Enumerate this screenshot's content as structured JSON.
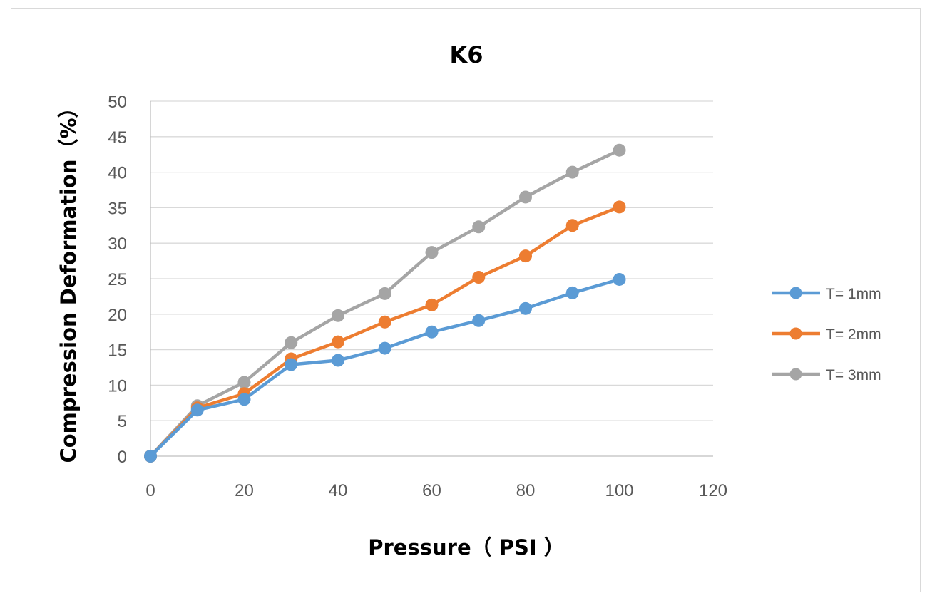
{
  "chart_data": {
    "type": "line",
    "title": "K6",
    "xlabel": "Pressure（ PSI ）",
    "ylabel": "Compression Deformation（%）",
    "xlim": [
      0,
      120
    ],
    "ylim": [
      0,
      50
    ],
    "xticks": [
      0,
      20,
      40,
      60,
      80,
      100,
      120
    ],
    "yticks": [
      0,
      5,
      10,
      15,
      20,
      25,
      30,
      35,
      40,
      45,
      50
    ],
    "grid": "horizontal",
    "legend_position": "right",
    "x": [
      0,
      10,
      20,
      30,
      40,
      50,
      60,
      70,
      80,
      90,
      100
    ],
    "series": [
      {
        "name": "T= 1mm",
        "color": "#5b9bd5",
        "values": [
          0,
          6.5,
          8.0,
          12.9,
          13.5,
          15.2,
          17.5,
          19.1,
          20.8,
          23.0,
          24.9
        ]
      },
      {
        "name": "T= 2mm",
        "color": "#ed7d31",
        "values": [
          0,
          6.8,
          8.8,
          13.7,
          16.1,
          18.9,
          21.3,
          25.2,
          28.2,
          32.5,
          35.1
        ]
      },
      {
        "name": "T= 3mm",
        "color": "#a5a5a5",
        "values": [
          0,
          7.1,
          10.4,
          16.0,
          19.8,
          22.9,
          28.7,
          32.3,
          36.5,
          40.0,
          43.1
        ]
      }
    ]
  }
}
